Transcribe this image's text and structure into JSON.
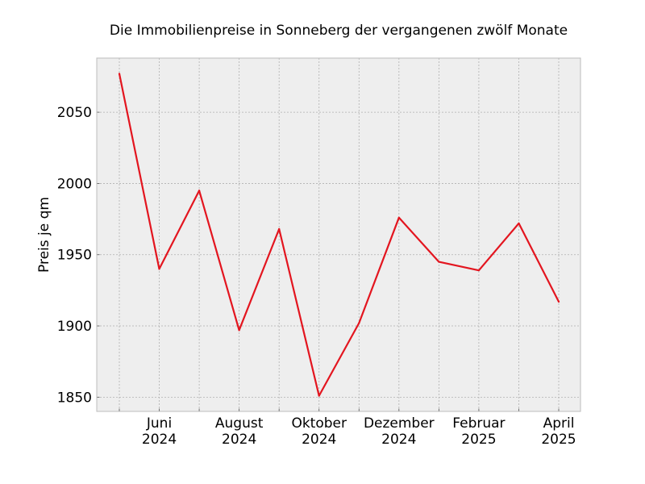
{
  "chart_data": {
    "type": "line",
    "title": "Die Immobilienpreise in Sonneberg der vergangenen zwölf Monate",
    "xlabel": "",
    "ylabel": "Preis je qm",
    "x": [
      "2024-05",
      "2024-06",
      "2024-07",
      "2024-08",
      "2024-09",
      "2024-10",
      "2024-11",
      "2024-12",
      "2025-01",
      "2025-02",
      "2025-03",
      "2025-04"
    ],
    "series": [
      {
        "values": [
          2077,
          1940,
          1995,
          1897,
          1968,
          1851,
          1902,
          1976,
          1945,
          1939,
          1972,
          1917
        ],
        "color": "#e3151f"
      }
    ],
    "ylim": [
      1840,
      2088
    ],
    "yticks": [
      1850,
      1900,
      1950,
      2000,
      2050
    ],
    "xtick_labels": [
      {
        "x": "2024-06",
        "line1": "Juni",
        "line2": "2024"
      },
      {
        "x": "2024-08",
        "line1": "August",
        "line2": "2024"
      },
      {
        "x": "2024-10",
        "line1": "Oktober",
        "line2": "2024"
      },
      {
        "x": "2024-12",
        "line1": "Dezember",
        "line2": "2024"
      },
      {
        "x": "2025-02",
        "line1": "Februar",
        "line2": "2025"
      },
      {
        "x": "2025-04",
        "line1": "April",
        "line2": "2025"
      }
    ],
    "grid": true,
    "background": "#eeeeee",
    "grid_color": "#b0b0b0",
    "frame_color": "#bcbcbc"
  }
}
